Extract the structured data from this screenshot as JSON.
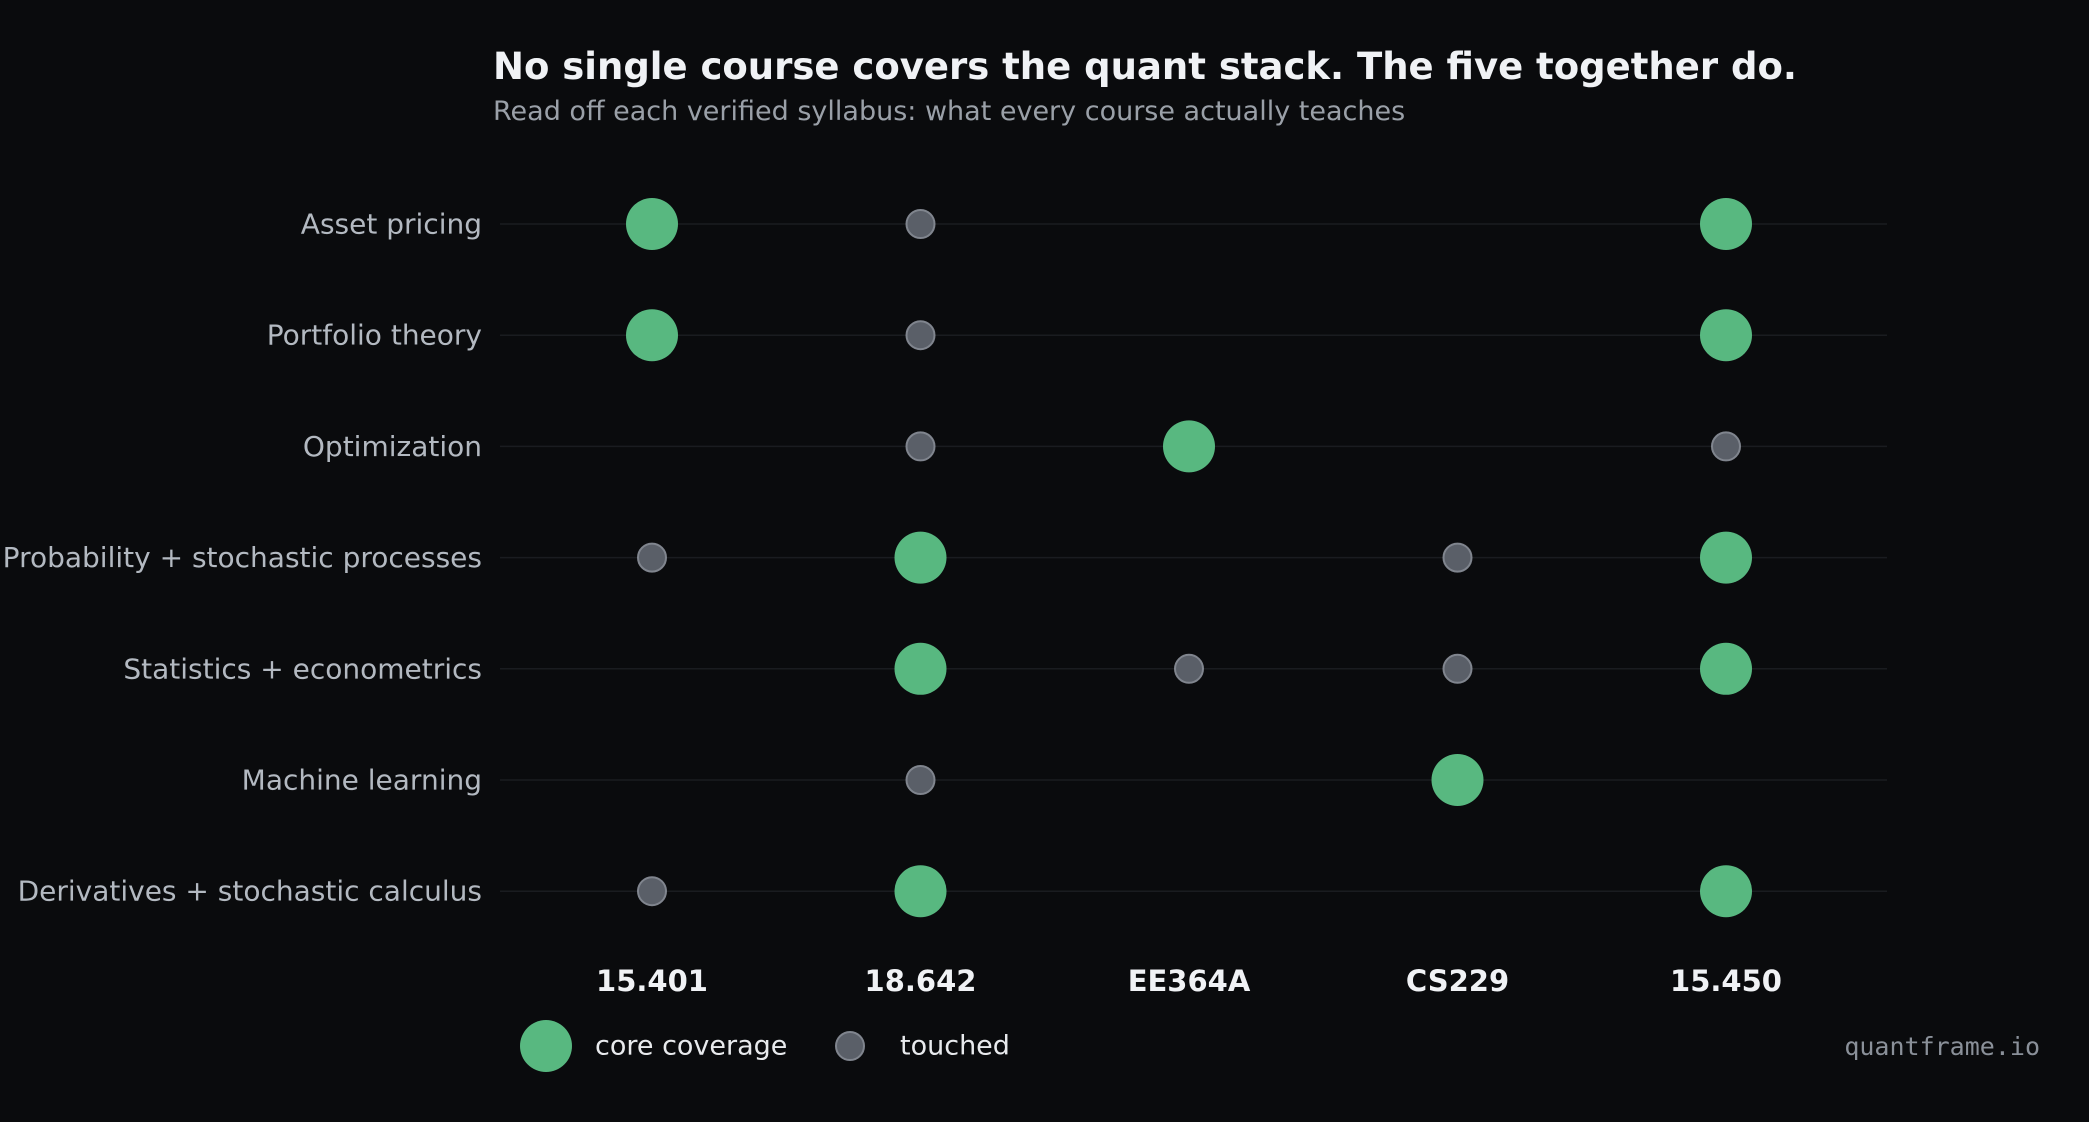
{
  "chart_data": {
    "type": "scatter",
    "title": "No single course covers the quant stack. The five together do.",
    "subtitle": "Read off each verified syllabus: what every course actually teaches",
    "columns": [
      "15.401",
      "18.642",
      "EE364A",
      "CS229",
      "15.450"
    ],
    "rows": [
      "Asset pricing",
      "Portfolio theory",
      "Optimization",
      "Probability + stochastic processes",
      "Statistics + econometrics",
      "Machine learning",
      "Derivatives + stochastic calculus"
    ],
    "coverage": [
      [
        "core",
        "touched",
        null,
        null,
        "core"
      ],
      [
        "core",
        "touched",
        null,
        null,
        "core"
      ],
      [
        null,
        "touched",
        "core",
        null,
        "touched"
      ],
      [
        "touched",
        "core",
        null,
        "touched",
        "core"
      ],
      [
        null,
        "core",
        "touched",
        "touched",
        "core"
      ],
      [
        null,
        "touched",
        null,
        "core",
        null
      ],
      [
        "touched",
        "core",
        null,
        null,
        "core"
      ]
    ],
    "legend": [
      {
        "key": "core",
        "label": "core coverage",
        "color": "#58b880"
      },
      {
        "key": "touched",
        "label": "touched",
        "color": "#5a5f68"
      }
    ],
    "grid": true,
    "legend_position": "bottom-left"
  },
  "colors": {
    "background": "#0a0b0d",
    "core": "#58b880",
    "touched": "#5a5f68",
    "touched_stroke": "#80858e"
  },
  "watermark": "quantframe.io"
}
